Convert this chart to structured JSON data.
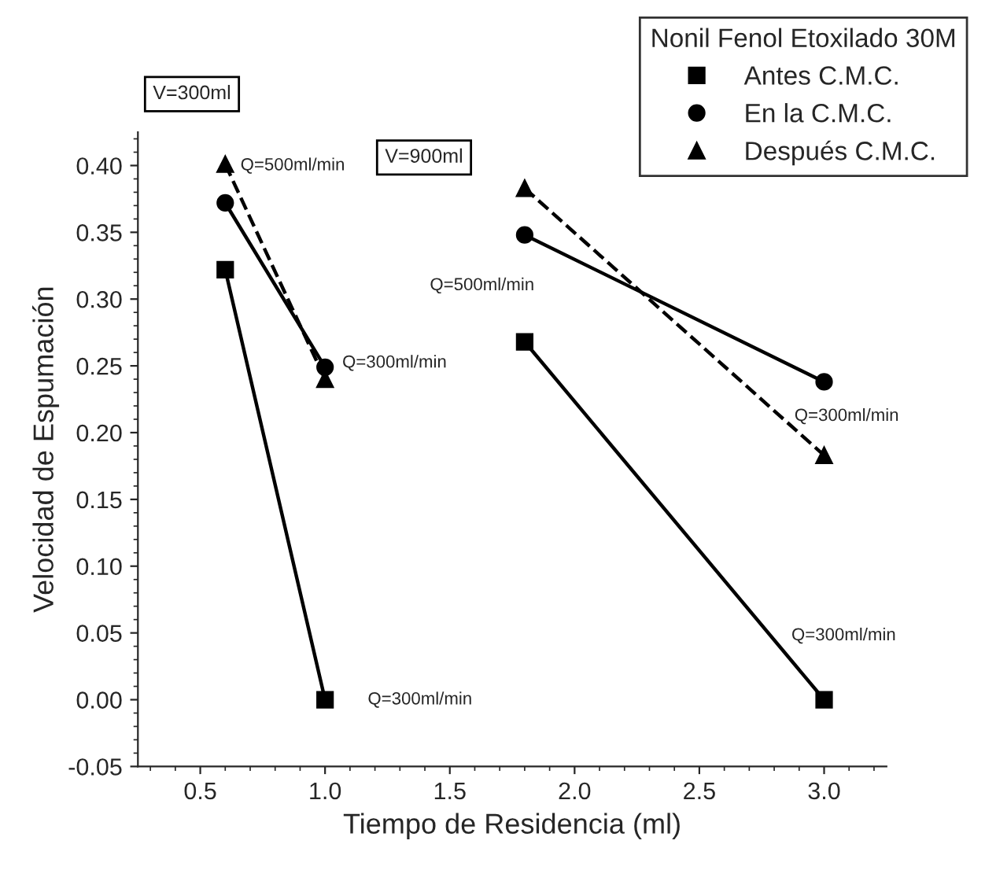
{
  "chart_data": {
    "type": "line",
    "xlabel": "Tiempo de Residencia (ml)",
    "ylabel": "Velocidad de Espumación",
    "legend_title": "Nonil Fenol Etoxilado 30M",
    "legend": "top right",
    "grid": false,
    "x": [
      0.6,
      1.0,
      null,
      1.8,
      3.0
    ],
    "series": [
      {
        "name": "Antes C.M.C.",
        "color": "#000000",
        "marker": "square",
        "line_style": "solid",
        "values": [
          0.322,
          0.0,
          null,
          0.268,
          0.0
        ]
      },
      {
        "name": "En la C.M.C.",
        "color": "#000000",
        "marker": "circle",
        "line_style": "solid",
        "values": [
          0.372,
          0.249,
          null,
          0.348,
          0.238
        ]
      },
      {
        "name": "Después C.M.C.",
        "color": "#000000",
        "marker": "triangle",
        "line_style": "dashed",
        "values": [
          0.401,
          0.24,
          null,
          0.383,
          0.183
        ]
      }
    ],
    "xlim": [
      0.25,
      3.25
    ],
    "xticks": [
      0.5,
      {
        "value": 1,
        "label": "1.0"
      },
      1.5,
      {
        "value": 2,
        "label": "2.0"
      },
      2.5,
      {
        "value": 3,
        "label": "3.0"
      }
    ],
    "ylim": [
      -0.05,
      0.425
    ],
    "yticks": [
      -0.05,
      {
        "value": 0,
        "label": "0.00"
      },
      0.05,
      {
        "value": 0.1,
        "label": "0.10"
      },
      0.15,
      {
        "value": 0.2,
        "label": "0.20"
      },
      0.25,
      {
        "value": 0.3,
        "label": "0.30"
      },
      0.35,
      {
        "value": 0.4,
        "label": "0.40"
      }
    ],
    "annotations": [
      "V=300ml",
      "V=900ml",
      "Q=500ml/min",
      "Q=300ml/min",
      "Q=300ml/min",
      "Q=500ml/min",
      "Q=300ml/min",
      "Q=300ml/min"
    ]
  }
}
